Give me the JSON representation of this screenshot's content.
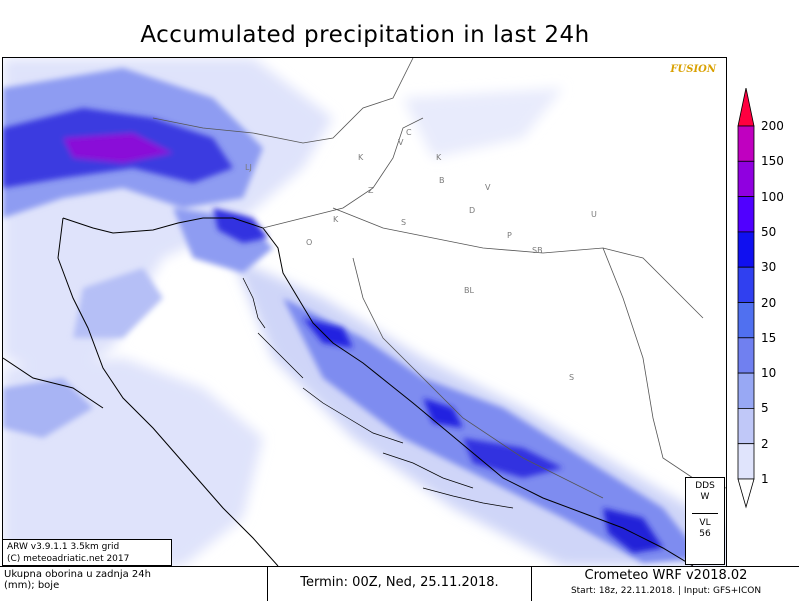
{
  "title": "Accumulated precipitation in last 24h",
  "fusion_label": "FUSION",
  "model_info": {
    "line1": "ARW v3.9.1.1 3.5km grid",
    "line2": "(C) meteoadriatic.net 2017"
  },
  "description": {
    "line1": "Ukupna oborina u zadnja 24h",
    "line2": "(mm); boje"
  },
  "termin": "Termin: 00Z, Ned, 25.11.2018.",
  "crometeo": "Crometeo WRF v2018.02",
  "start": "Start: 18z, 22.11.2018. | Input: GFS+ICON",
  "station": {
    "line1": "DDS",
    "line2": "W",
    "line3": "VL",
    "line4": "56"
  },
  "legend": {
    "labels": [
      "200",
      "150",
      "100",
      "50",
      "30",
      "20",
      "15",
      "10",
      "5",
      "2",
      "1"
    ],
    "colors": [
      "#ff0040",
      "#c000c0",
      "#9000e0",
      "#5000ff",
      "#1010f0",
      "#3040f0",
      "#5070f0",
      "#7080f0",
      "#98a8f4",
      "#c0c8f8",
      "#e0e4fc",
      "#ffffff"
    ]
  },
  "cities": [
    {
      "id": "lj",
      "label": "LJ"
    },
    {
      "id": "z",
      "label": "Z"
    },
    {
      "id": "k1",
      "label": "K"
    },
    {
      "id": "v",
      "label": "V"
    },
    {
      "id": "c",
      "label": "C"
    },
    {
      "id": "k2",
      "label": "K"
    },
    {
      "id": "b",
      "label": "B"
    },
    {
      "id": "v2",
      "label": "V"
    },
    {
      "id": "k3",
      "label": "K"
    },
    {
      "id": "s1",
      "label": "S"
    },
    {
      "id": "d",
      "label": "D"
    },
    {
      "id": "o",
      "label": "O"
    },
    {
      "id": "p",
      "label": "P"
    },
    {
      "id": "sb",
      "label": "SB"
    },
    {
      "id": "u",
      "label": "U"
    },
    {
      "id": "bl",
      "label": "BL"
    },
    {
      "id": "s2",
      "label": "S"
    }
  ]
}
